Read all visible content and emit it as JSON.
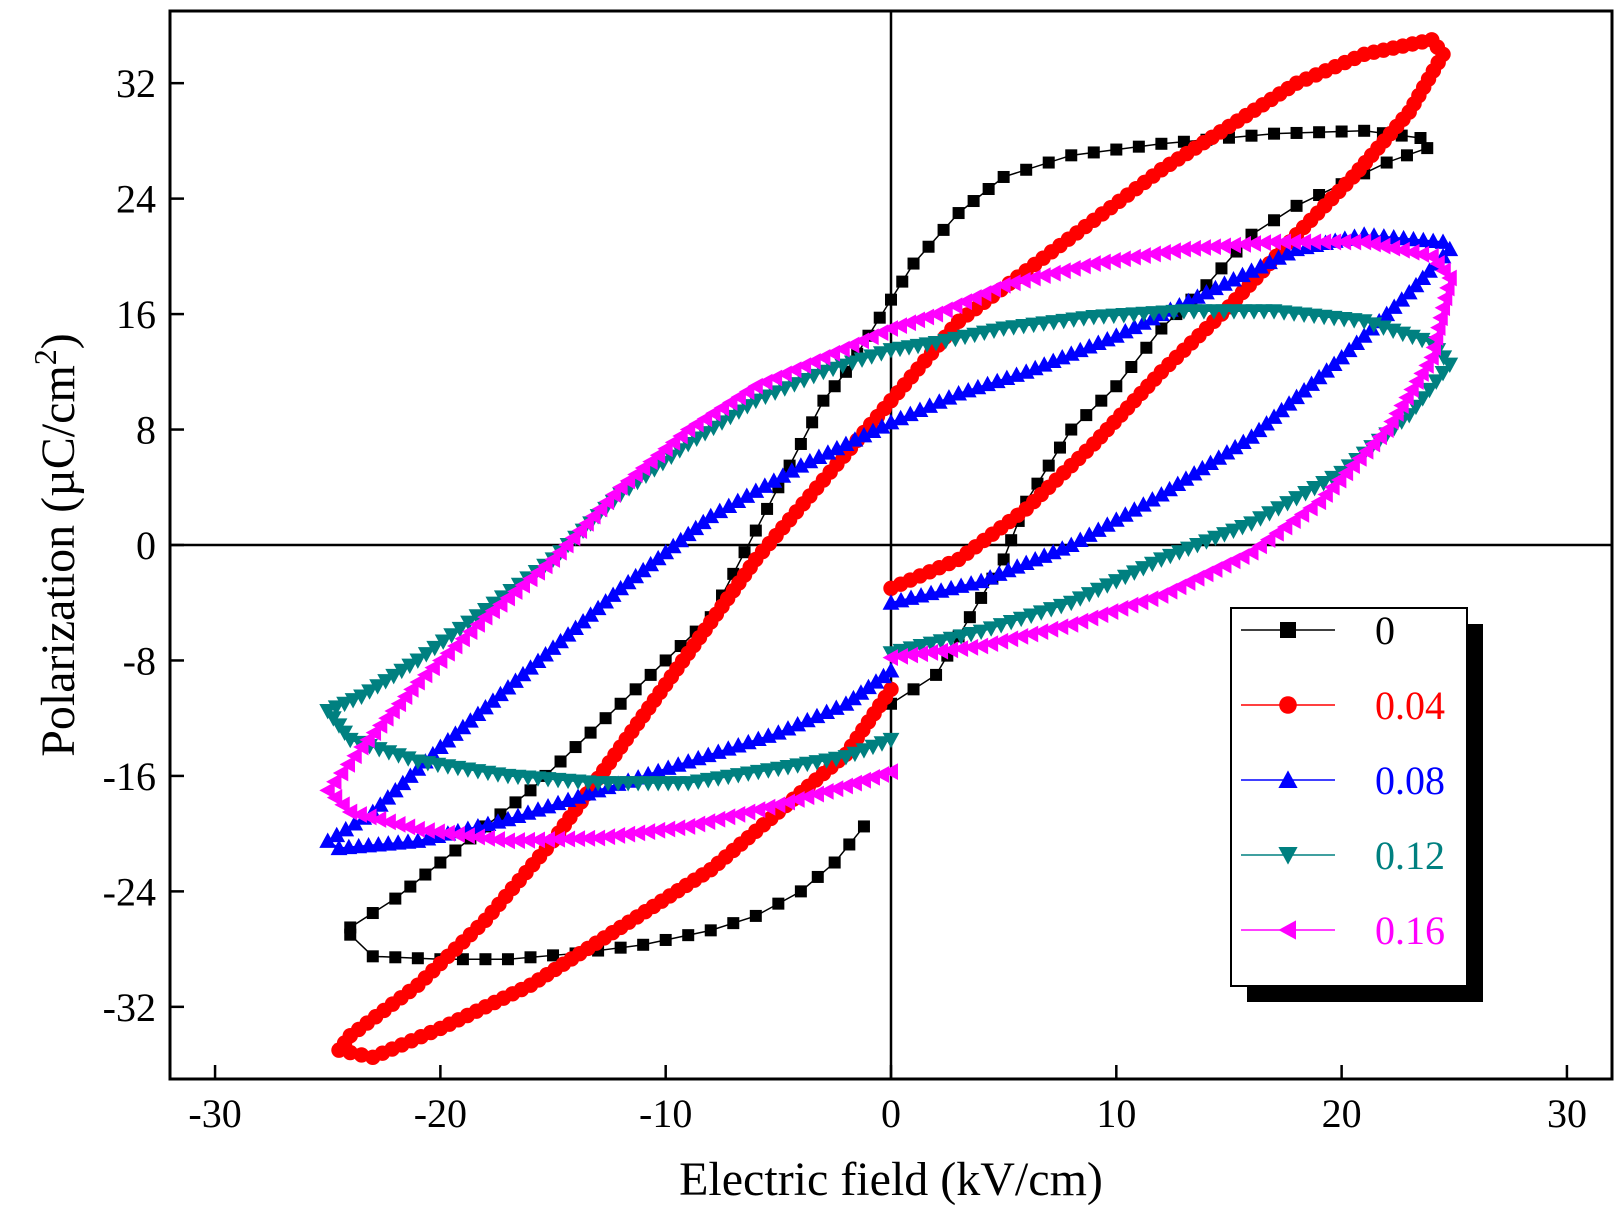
{
  "chart_data": {
    "type": "scatter",
    "xlabel": "Electric field (kV/cm)",
    "ylabel": "Polarization (µC/cm",
    "ylabel_superscript": "2",
    "ylabel_close": ")",
    "xlim": [
      -32,
      32
    ],
    "ylim": [
      -37,
      37
    ],
    "xticks": [
      -30,
      -20,
      -10,
      0,
      10,
      20,
      30
    ],
    "yticks": [
      -32,
      -24,
      -16,
      -8,
      0,
      8,
      16,
      24,
      32
    ],
    "zero_lines": true,
    "grid": false,
    "legend_position": "bottom-right",
    "series": [
      {
        "name": "0",
        "color": "#000000",
        "marker": "square",
        "points": [
          [
            0,
            -11
          ],
          [
            2,
            -9
          ],
          [
            3.5,
            -5
          ],
          [
            5,
            -1
          ],
          [
            6,
            3
          ],
          [
            8,
            8
          ],
          [
            10,
            11
          ],
          [
            12,
            15
          ],
          [
            14,
            18
          ],
          [
            16,
            21.5
          ],
          [
            18,
            23.5
          ],
          [
            20,
            25
          ],
          [
            22,
            26.5
          ],
          [
            23.8,
            27.5
          ],
          [
            23.5,
            28.2
          ],
          [
            21,
            28.7
          ],
          [
            17,
            28.5
          ],
          [
            12,
            27.8
          ],
          [
            8,
            27
          ],
          [
            5,
            25.5
          ],
          [
            3,
            23
          ],
          [
            1,
            19.5
          ],
          [
            0,
            17
          ],
          [
            -1,
            14.5
          ],
          [
            -2,
            12
          ],
          [
            -3,
            10
          ],
          [
            -4,
            7
          ],
          [
            -5,
            4
          ],
          [
            -6,
            1
          ],
          [
            -7,
            -2
          ],
          [
            -8,
            -5
          ],
          [
            -10,
            -8
          ],
          [
            -12,
            -11
          ],
          [
            -14,
            -14
          ],
          [
            -16,
            -17
          ],
          [
            -18,
            -19.5
          ],
          [
            -20,
            -22
          ],
          [
            -22,
            -24.5
          ],
          [
            -24,
            -26.5
          ],
          [
            -24,
            -27
          ],
          [
            -23,
            -28.5
          ],
          [
            -20,
            -28.7
          ],
          [
            -17,
            -28.7
          ],
          [
            -14,
            -28.3
          ],
          [
            -11,
            -27.7
          ],
          [
            -8,
            -26.7
          ],
          [
            -6,
            -25.7
          ],
          [
            -4,
            -24
          ],
          [
            -2.5,
            -22
          ],
          [
            -1.2,
            -19.5
          ]
        ]
      },
      {
        "name": "0.04",
        "color": "#ff0000",
        "marker": "circle",
        "points": [
          [
            0,
            -3
          ],
          [
            3,
            -1
          ],
          [
            6,
            2.5
          ],
          [
            9,
            7
          ],
          [
            12,
            12
          ],
          [
            15,
            16.5
          ],
          [
            18,
            21.5
          ],
          [
            20.5,
            25.5
          ],
          [
            23,
            30
          ],
          [
            24.5,
            34
          ],
          [
            24,
            35
          ],
          [
            21,
            34
          ],
          [
            18,
            32
          ],
          [
            15,
            29
          ],
          [
            12,
            26
          ],
          [
            9,
            22.5
          ],
          [
            6,
            19
          ],
          [
            3,
            15.5
          ],
          [
            0,
            10
          ],
          [
            -3,
            4.5
          ],
          [
            -6,
            -1
          ],
          [
            -9,
            -7.5
          ],
          [
            -12,
            -14
          ],
          [
            -15,
            -20.5
          ],
          [
            -18,
            -26
          ],
          [
            -21,
            -30.5
          ],
          [
            -24,
            -34
          ],
          [
            -24.5,
            -35
          ],
          [
            -23,
            -35.5
          ],
          [
            -20,
            -33.5
          ],
          [
            -16,
            -30.5
          ],
          [
            -12,
            -26.5
          ],
          [
            -8,
            -22.5
          ],
          [
            -5,
            -18.5
          ],
          [
            -2,
            -14.5
          ],
          [
            0,
            -10
          ]
        ]
      },
      {
        "name": "0.08",
        "color": "#0000ff",
        "marker": "triangle-up",
        "points": [
          [
            0,
            -4
          ],
          [
            4,
            -2.5
          ],
          [
            8,
            0
          ],
          [
            12,
            3.5
          ],
          [
            16,
            7.5
          ],
          [
            20,
            13
          ],
          [
            23,
            17.5
          ],
          [
            24.8,
            20.5
          ],
          [
            24.5,
            21
          ],
          [
            21,
            21.5
          ],
          [
            18,
            20.5
          ],
          [
            14,
            17.5
          ],
          [
            10,
            14.5
          ],
          [
            6,
            12
          ],
          [
            3,
            10.5
          ],
          [
            0,
            8.5
          ],
          [
            -4,
            5.5
          ],
          [
            -8,
            2
          ],
          [
            -12,
            -3
          ],
          [
            -16,
            -8.5
          ],
          [
            -20,
            -14
          ],
          [
            -23,
            -18.5
          ],
          [
            -25,
            -20.5
          ],
          [
            -24.5,
            -21
          ],
          [
            -21,
            -20.5
          ],
          [
            -17,
            -19
          ],
          [
            -13,
            -17
          ],
          [
            -9,
            -15
          ],
          [
            -5,
            -13
          ],
          [
            -2,
            -11
          ],
          [
            0,
            -8.7
          ]
        ]
      },
      {
        "name": "0.12",
        "color": "#008080",
        "marker": "triangle-down",
        "points": [
          [
            0,
            -7.5
          ],
          [
            4,
            -6
          ],
          [
            8,
            -4
          ],
          [
            12,
            -1
          ],
          [
            16,
            1.5
          ],
          [
            20,
            5
          ],
          [
            23,
            9
          ],
          [
            24.8,
            12.5
          ],
          [
            24,
            14
          ],
          [
            21,
            15.5
          ],
          [
            17,
            16.2
          ],
          [
            13,
            16.2
          ],
          [
            9,
            15.8
          ],
          [
            5,
            15
          ],
          [
            2,
            14
          ],
          [
            0,
            13.5
          ],
          [
            -3,
            12
          ],
          [
            -6,
            10
          ],
          [
            -9,
            7
          ],
          [
            -12,
            3.5
          ],
          [
            -15,
            -1
          ],
          [
            -18,
            -4.5
          ],
          [
            -21,
            -8
          ],
          [
            -23.5,
            -10.5
          ],
          [
            -25,
            -11.5
          ],
          [
            -24,
            -13.5
          ],
          [
            -21,
            -15
          ],
          [
            -17,
            -16
          ],
          [
            -13,
            -16.5
          ],
          [
            -9,
            -16.5
          ],
          [
            -5,
            -15.5
          ],
          [
            -2,
            -14.7
          ],
          [
            0,
            -13.5
          ]
        ]
      },
      {
        "name": "0.16",
        "color": "#ff00ff",
        "marker": "triangle-left",
        "points": [
          [
            0,
            -7.8
          ],
          [
            4,
            -7
          ],
          [
            8,
            -5.5
          ],
          [
            12,
            -3.5
          ],
          [
            16,
            -0.5
          ],
          [
            19,
            3
          ],
          [
            22,
            8
          ],
          [
            24,
            13
          ],
          [
            24.8,
            18.5
          ],
          [
            24,
            20
          ],
          [
            21,
            21
          ],
          [
            17,
            21
          ],
          [
            13,
            20.5
          ],
          [
            9,
            19.5
          ],
          [
            5,
            18
          ],
          [
            2,
            16
          ],
          [
            0,
            15
          ],
          [
            -3,
            13
          ],
          [
            -6,
            11
          ],
          [
            -9,
            8
          ],
          [
            -12,
            4
          ],
          [
            -15,
            -1
          ],
          [
            -18,
            -5
          ],
          [
            -21,
            -9.5
          ],
          [
            -23.5,
            -14
          ],
          [
            -25,
            -17
          ],
          [
            -24,
            -18.5
          ],
          [
            -21,
            -19.7
          ],
          [
            -17,
            -20.5
          ],
          [
            -13,
            -20.3
          ],
          [
            -9,
            -19.5
          ],
          [
            -5,
            -18
          ],
          [
            -2,
            -16.7
          ],
          [
            0,
            -15.7
          ]
        ]
      }
    ]
  }
}
